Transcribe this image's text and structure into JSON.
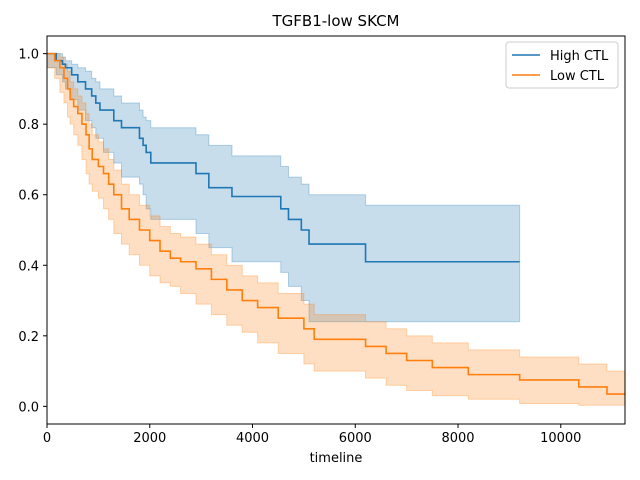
{
  "chart_data": {
    "type": "line",
    "title": "TGFB1-low SKCM",
    "xlabel": "timeline",
    "ylabel": "",
    "xlim": [
      0,
      11250
    ],
    "ylim": [
      -0.05,
      1.05
    ],
    "xticks": [
      0,
      2000,
      4000,
      6000,
      8000,
      10000
    ],
    "yticks": [
      0.0,
      0.2,
      0.4,
      0.6,
      0.8,
      1.0
    ],
    "xtick_labels": [
      "0",
      "2000",
      "4000",
      "6000",
      "8000",
      "10000"
    ],
    "ytick_labels": [
      "0.0",
      "0.2",
      "0.4",
      "0.6",
      "0.8",
      "1.0"
    ],
    "grid": false,
    "legend_position": "top-right",
    "step": true,
    "series": [
      {
        "name": "High CTL",
        "color": "#1f77b4",
        "x": [
          0,
          180,
          300,
          360,
          480,
          600,
          750,
          870,
          950,
          1030,
          1100,
          1300,
          1450,
          1800,
          1870,
          1930,
          2020,
          2900,
          3150,
          3600,
          4550,
          4700,
          4950,
          5100,
          6200,
          9200
        ],
        "y": [
          1.0,
          0.98,
          0.97,
          0.96,
          0.94,
          0.92,
          0.9,
          0.88,
          0.86,
          0.84,
          0.84,
          0.81,
          0.79,
          0.76,
          0.74,
          0.72,
          0.69,
          0.66,
          0.62,
          0.595,
          0.56,
          0.53,
          0.5,
          0.46,
          0.41,
          0.41
        ],
        "ci_lower": [
          1.0,
          0.96,
          0.94,
          0.92,
          0.9,
          0.87,
          0.84,
          0.81,
          0.79,
          0.76,
          0.76,
          0.72,
          0.69,
          0.65,
          0.63,
          0.6,
          0.56,
          0.53,
          0.49,
          0.45,
          0.41,
          0.38,
          0.34,
          0.3,
          0.24,
          0.24
        ],
        "ci_upper": [
          1.0,
          1.0,
          0.99,
          0.98,
          0.97,
          0.96,
          0.95,
          0.93,
          0.92,
          0.9,
          0.9,
          0.88,
          0.86,
          0.84,
          0.82,
          0.81,
          0.79,
          0.77,
          0.74,
          0.71,
          0.68,
          0.65,
          0.63,
          0.6,
          0.57,
          0.57
        ]
      },
      {
        "name": "Low CTL",
        "color": "#ff7f0e",
        "x": [
          0,
          150,
          250,
          330,
          400,
          450,
          520,
          600,
          680,
          760,
          820,
          880,
          1000,
          1100,
          1200,
          1300,
          1450,
          1600,
          1800,
          2000,
          2200,
          2400,
          2600,
          2900,
          3200,
          3500,
          3800,
          4100,
          4500,
          5000,
          5200,
          6200,
          6600,
          7000,
          7500,
          8200,
          9200,
          10350,
          10900,
          11250
        ],
        "y": [
          1.0,
          0.98,
          0.96,
          0.93,
          0.9,
          0.87,
          0.85,
          0.83,
          0.8,
          0.77,
          0.73,
          0.7,
          0.68,
          0.66,
          0.63,
          0.6,
          0.56,
          0.53,
          0.5,
          0.47,
          0.44,
          0.42,
          0.41,
          0.39,
          0.36,
          0.33,
          0.3,
          0.28,
          0.25,
          0.22,
          0.19,
          0.17,
          0.15,
          0.13,
          0.11,
          0.09,
          0.075,
          0.055,
          0.035,
          0.035
        ],
        "ci_lower": [
          1.0,
          0.96,
          0.93,
          0.89,
          0.86,
          0.82,
          0.8,
          0.77,
          0.74,
          0.7,
          0.66,
          0.63,
          0.61,
          0.59,
          0.56,
          0.53,
          0.49,
          0.46,
          0.43,
          0.4,
          0.37,
          0.35,
          0.34,
          0.32,
          0.29,
          0.26,
          0.23,
          0.21,
          0.18,
          0.15,
          0.12,
          0.1,
          0.08,
          0.06,
          0.045,
          0.03,
          0.02,
          0.008,
          0.003,
          0.003
        ],
        "ci_upper": [
          1.0,
          1.0,
          0.99,
          0.97,
          0.95,
          0.92,
          0.9,
          0.88,
          0.86,
          0.83,
          0.8,
          0.77,
          0.75,
          0.73,
          0.7,
          0.67,
          0.63,
          0.6,
          0.57,
          0.54,
          0.51,
          0.49,
          0.48,
          0.46,
          0.43,
          0.4,
          0.37,
          0.35,
          0.32,
          0.29,
          0.26,
          0.24,
          0.22,
          0.2,
          0.18,
          0.16,
          0.14,
          0.12,
          0.1,
          0.1
        ]
      }
    ]
  }
}
